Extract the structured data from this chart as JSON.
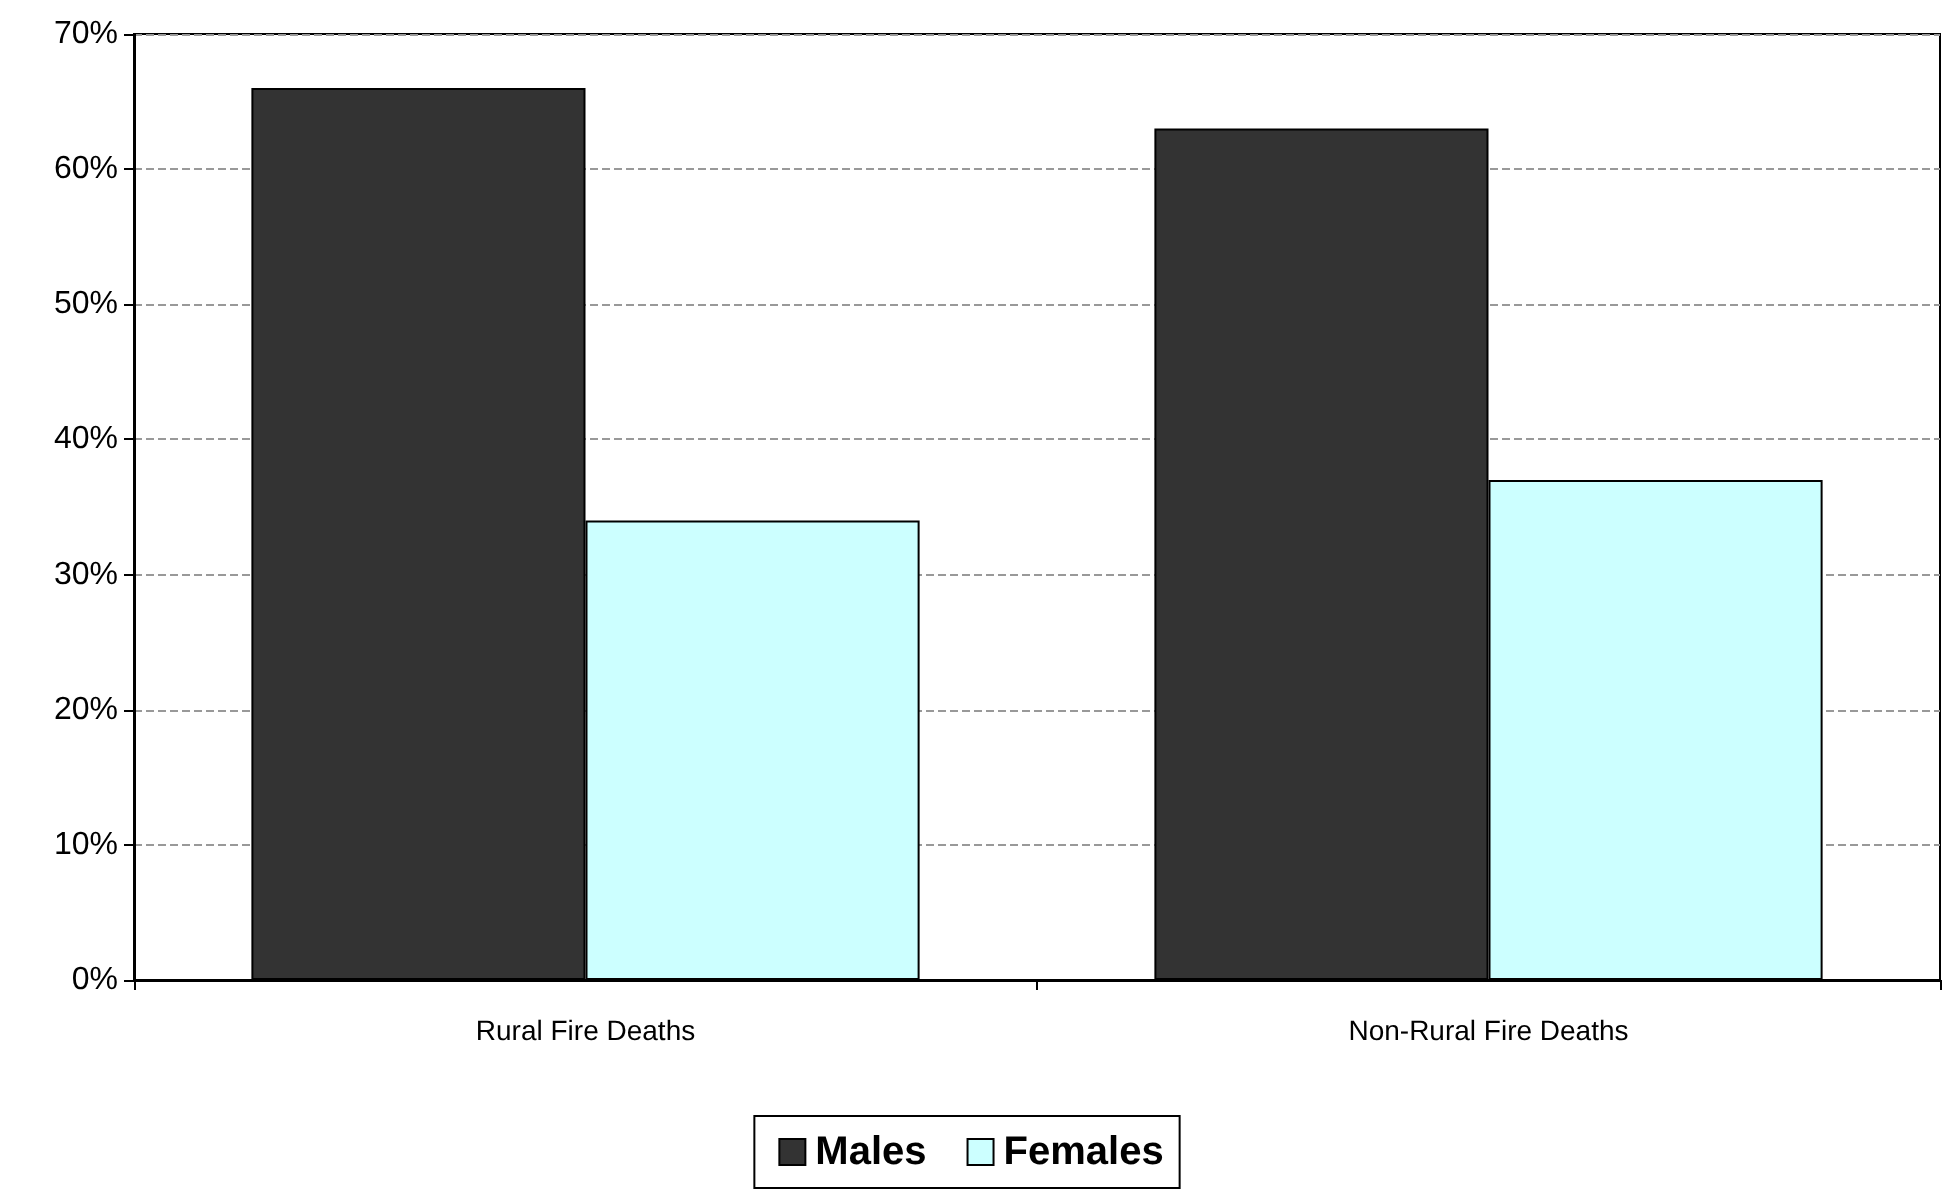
{
  "chart_data": {
    "type": "bar",
    "categories": [
      "Rural Fire Deaths",
      "Non-Rural Fire Deaths"
    ],
    "series": [
      {
        "name": "Males",
        "color": "#333333",
        "values": [
          66,
          63
        ]
      },
      {
        "name": "Females",
        "color": "#ccffff",
        "values": [
          34,
          37
        ]
      }
    ],
    "ylim": [
      0,
      70
    ],
    "yticks": [
      {
        "value": 0,
        "label": "0%"
      },
      {
        "value": 10,
        "label": "10%"
      },
      {
        "value": 20,
        "label": "20%"
      },
      {
        "value": 30,
        "label": "30%"
      },
      {
        "value": 40,
        "label": "40%"
      },
      {
        "value": 50,
        "label": "50%"
      },
      {
        "value": 60,
        "label": "60%"
      },
      {
        "value": 70,
        "label": "70%"
      }
    ],
    "grid": "y",
    "legend": "bottom"
  }
}
